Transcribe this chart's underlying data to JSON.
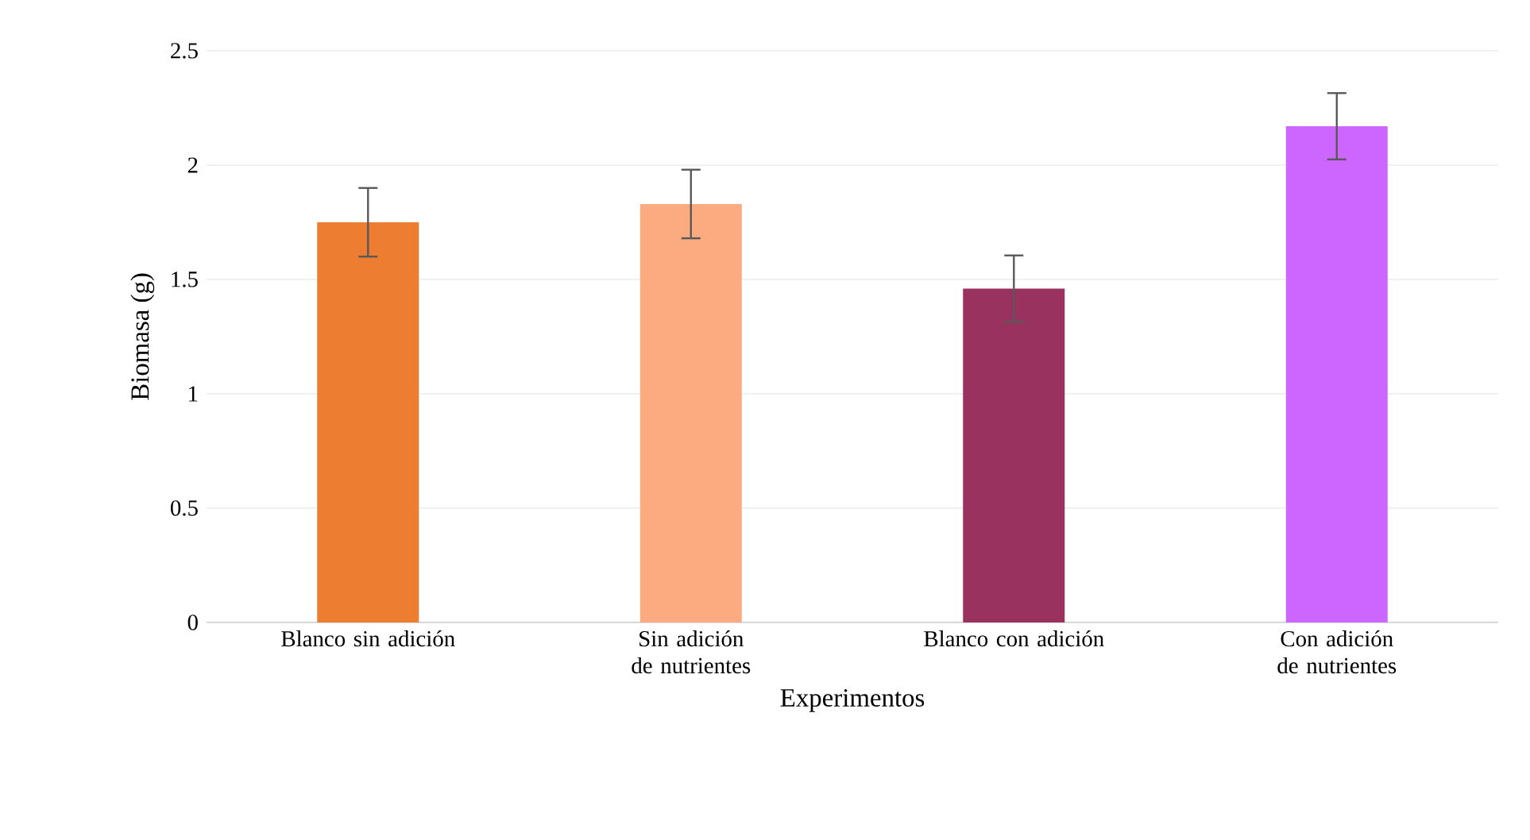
{
  "chart_data": {
    "type": "bar",
    "xlabel": "Experimentos",
    "ylabel": "Biomasa (g)",
    "categories": [
      "Blanco sin adición",
      "Sin adición de nutrientes",
      "Blanco con adición",
      "Con adición de nutrientes"
    ],
    "values": [
      1.75,
      1.83,
      1.46,
      2.17
    ],
    "colors": [
      "#ed7d31",
      "#fbab7f",
      "#99325f",
      "#cc66ff"
    ],
    "errors": [
      0.15,
      0.15,
      0.145,
      0.145
    ],
    "ylim": [
      0,
      2.5
    ],
    "yticks": [
      0,
      0.5,
      1,
      1.5,
      2,
      2.5
    ],
    "grid": "y"
  }
}
